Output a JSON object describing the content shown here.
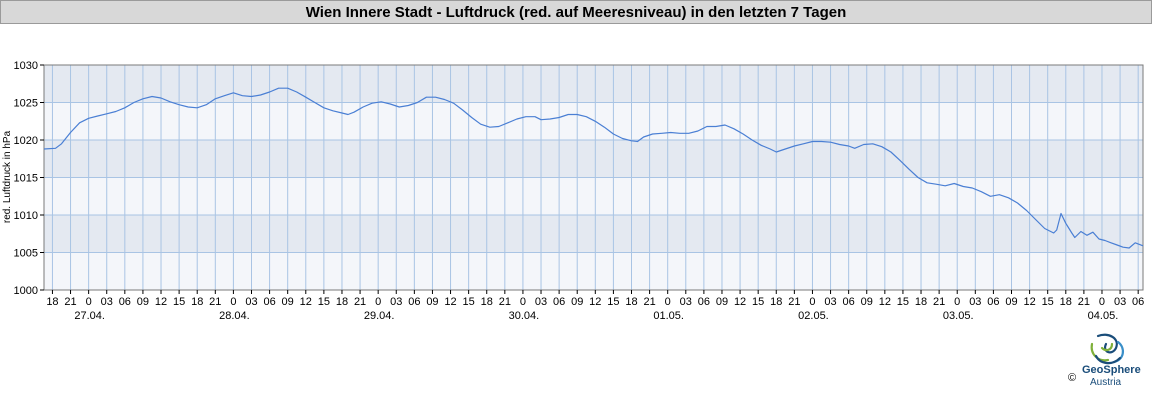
{
  "chart_data": {
    "type": "line",
    "title": "Wien Innere Stadt - Luftdruck (red. auf Meeresniveau) in den letzten 7 Tagen",
    "ylabel": "red. Luftdruck in hPa",
    "xlabel": "",
    "ylim": [
      1000,
      1030
    ],
    "yticks": [
      1000,
      1005,
      1010,
      1015,
      1020,
      1025,
      1030
    ],
    "grid": true,
    "x_unit": "hours since 27.04. 00:00",
    "xlim": [
      -7.4,
      174.8
    ],
    "x_hour_ticks": [
      {
        "t": -6,
        "label": "18"
      },
      {
        "t": -3,
        "label": "21"
      },
      {
        "t": 0,
        "label": "0"
      },
      {
        "t": 3,
        "label": "03"
      },
      {
        "t": 6,
        "label": "06"
      },
      {
        "t": 9,
        "label": "09"
      },
      {
        "t": 12,
        "label": "12"
      },
      {
        "t": 15,
        "label": "15"
      },
      {
        "t": 18,
        "label": "18"
      },
      {
        "t": 21,
        "label": "21"
      },
      {
        "t": 24,
        "label": "0"
      },
      {
        "t": 27,
        "label": "03"
      },
      {
        "t": 30,
        "label": "06"
      },
      {
        "t": 33,
        "label": "09"
      },
      {
        "t": 36,
        "label": "12"
      },
      {
        "t": 39,
        "label": "15"
      },
      {
        "t": 42,
        "label": "18"
      },
      {
        "t": 45,
        "label": "21"
      },
      {
        "t": 48,
        "label": "0"
      },
      {
        "t": 51,
        "label": "03"
      },
      {
        "t": 54,
        "label": "06"
      },
      {
        "t": 57,
        "label": "09"
      },
      {
        "t": 60,
        "label": "12"
      },
      {
        "t": 63,
        "label": "15"
      },
      {
        "t": 66,
        "label": "18"
      },
      {
        "t": 69,
        "label": "21"
      },
      {
        "t": 72,
        "label": "0"
      },
      {
        "t": 75,
        "label": "03"
      },
      {
        "t": 78,
        "label": "06"
      },
      {
        "t": 81,
        "label": "09"
      },
      {
        "t": 84,
        "label": "12"
      },
      {
        "t": 87,
        "label": "15"
      },
      {
        "t": 90,
        "label": "18"
      },
      {
        "t": 93,
        "label": "21"
      },
      {
        "t": 96,
        "label": "0"
      },
      {
        "t": 99,
        "label": "03"
      },
      {
        "t": 102,
        "label": "06"
      },
      {
        "t": 105,
        "label": "09"
      },
      {
        "t": 108,
        "label": "12"
      },
      {
        "t": 111,
        "label": "15"
      },
      {
        "t": 114,
        "label": "18"
      },
      {
        "t": 117,
        "label": "21"
      },
      {
        "t": 120,
        "label": "0"
      },
      {
        "t": 123,
        "label": "03"
      },
      {
        "t": 126,
        "label": "06"
      },
      {
        "t": 129,
        "label": "09"
      },
      {
        "t": 132,
        "label": "12"
      },
      {
        "t": 135,
        "label": "15"
      },
      {
        "t": 138,
        "label": "18"
      },
      {
        "t": 141,
        "label": "21"
      },
      {
        "t": 144,
        "label": "0"
      },
      {
        "t": 147,
        "label": "03"
      },
      {
        "t": 150,
        "label": "06"
      },
      {
        "t": 153,
        "label": "09"
      },
      {
        "t": 156,
        "label": "12"
      },
      {
        "t": 159,
        "label": "15"
      },
      {
        "t": 162,
        "label": "18"
      },
      {
        "t": 165,
        "label": "21"
      },
      {
        "t": 168,
        "label": "0"
      },
      {
        "t": 171,
        "label": "03"
      },
      {
        "t": 174,
        "label": "06"
      }
    ],
    "date_labels": [
      {
        "t": 0,
        "label": "27.04."
      },
      {
        "t": 24,
        "label": "28.04."
      },
      {
        "t": 48,
        "label": "29.04."
      },
      {
        "t": 72,
        "label": "30.04."
      },
      {
        "t": 96,
        "label": "01.05."
      },
      {
        "t": 120,
        "label": "02.05."
      },
      {
        "t": 144,
        "label": "03.05."
      },
      {
        "t": 168,
        "label": "04.05."
      }
    ],
    "series": [
      {
        "color": "#4a7fd4",
        "points": [
          [
            -7.4,
            1018.8
          ],
          [
            -5.5,
            1018.9
          ],
          [
            -4.5,
            1019.5
          ],
          [
            -3,
            1021.0
          ],
          [
            -1.5,
            1022.3
          ],
          [
            0,
            1022.9
          ],
          [
            1.5,
            1023.2
          ],
          [
            3,
            1023.5
          ],
          [
            4.5,
            1023.8
          ],
          [
            6,
            1024.3
          ],
          [
            7.5,
            1025.0
          ],
          [
            9,
            1025.5
          ],
          [
            10.5,
            1025.8
          ],
          [
            12,
            1025.6
          ],
          [
            13.5,
            1025.1
          ],
          [
            15,
            1024.7
          ],
          [
            16.5,
            1024.4
          ],
          [
            18,
            1024.3
          ],
          [
            19.5,
            1024.7
          ],
          [
            21,
            1025.5
          ],
          [
            22.5,
            1025.9
          ],
          [
            24,
            1026.3
          ],
          [
            25.5,
            1025.9
          ],
          [
            27,
            1025.8
          ],
          [
            28.5,
            1026.0
          ],
          [
            30,
            1026.4
          ],
          [
            31.5,
            1026.9
          ],
          [
            33,
            1026.9
          ],
          [
            34.5,
            1026.4
          ],
          [
            36,
            1025.7
          ],
          [
            37.5,
            1025.0
          ],
          [
            39,
            1024.3
          ],
          [
            40.5,
            1023.9
          ],
          [
            42,
            1023.6
          ],
          [
            43,
            1023.4
          ],
          [
            44,
            1023.7
          ],
          [
            45.5,
            1024.4
          ],
          [
            47,
            1024.9
          ],
          [
            48.5,
            1025.1
          ],
          [
            50,
            1024.8
          ],
          [
            51.5,
            1024.4
          ],
          [
            53,
            1024.6
          ],
          [
            54.5,
            1025.0
          ],
          [
            56,
            1025.7
          ],
          [
            57.5,
            1025.7
          ],
          [
            59,
            1025.4
          ],
          [
            60.5,
            1024.9
          ],
          [
            62,
            1024.0
          ],
          [
            63.5,
            1023.0
          ],
          [
            65,
            1022.1
          ],
          [
            66.5,
            1021.7
          ],
          [
            68,
            1021.8
          ],
          [
            69.5,
            1022.3
          ],
          [
            71,
            1022.8
          ],
          [
            72.5,
            1023.1
          ],
          [
            74,
            1023.1
          ],
          [
            75,
            1022.7
          ],
          [
            76.5,
            1022.8
          ],
          [
            78,
            1023.0
          ],
          [
            79.5,
            1023.4
          ],
          [
            81,
            1023.4
          ],
          [
            82.5,
            1023.1
          ],
          [
            84,
            1022.5
          ],
          [
            85.5,
            1021.7
          ],
          [
            87,
            1020.8
          ],
          [
            88.5,
            1020.2
          ],
          [
            90,
            1019.9
          ],
          [
            91,
            1019.8
          ],
          [
            92,
            1020.4
          ],
          [
            93.5,
            1020.8
          ],
          [
            95,
            1020.9
          ],
          [
            96.5,
            1021.0
          ],
          [
            98,
            1020.9
          ],
          [
            99.5,
            1020.9
          ],
          [
            101,
            1021.2
          ],
          [
            102.5,
            1021.8
          ],
          [
            104,
            1021.8
          ],
          [
            105.5,
            1022.0
          ],
          [
            107,
            1021.5
          ],
          [
            108.5,
            1020.8
          ],
          [
            110,
            1020.0
          ],
          [
            111.5,
            1019.3
          ],
          [
            113,
            1018.8
          ],
          [
            114,
            1018.4
          ],
          [
            115.5,
            1018.8
          ],
          [
            117,
            1019.2
          ],
          [
            118.5,
            1019.5
          ],
          [
            120,
            1019.8
          ],
          [
            121.5,
            1019.8
          ],
          [
            123,
            1019.7
          ],
          [
            124.5,
            1019.4
          ],
          [
            126,
            1019.2
          ],
          [
            127,
            1018.9
          ],
          [
            128.5,
            1019.4
          ],
          [
            130,
            1019.5
          ],
          [
            131.5,
            1019.1
          ],
          [
            133,
            1018.4
          ],
          [
            134.5,
            1017.3
          ],
          [
            136,
            1016.1
          ],
          [
            137.5,
            1015.0
          ],
          [
            139,
            1014.3
          ],
          [
            140.5,
            1014.1
          ],
          [
            142,
            1013.9
          ],
          [
            143.5,
            1014.2
          ],
          [
            145,
            1013.8
          ],
          [
            146.5,
            1013.6
          ],
          [
            148,
            1013.1
          ],
          [
            149.5,
            1012.5
          ],
          [
            151,
            1012.7
          ],
          [
            152.5,
            1012.3
          ],
          [
            154,
            1011.6
          ],
          [
            155.5,
            1010.6
          ],
          [
            157,
            1009.4
          ],
          [
            158.5,
            1008.2
          ],
          [
            160,
            1007.6
          ],
          [
            160.5,
            1008.0
          ],
          [
            161.2,
            1010.2
          ],
          [
            162,
            1008.9
          ],
          [
            163,
            1007.6
          ],
          [
            163.5,
            1007.0
          ],
          [
            164.5,
            1007.8
          ],
          [
            165.5,
            1007.3
          ],
          [
            166.5,
            1007.7
          ],
          [
            167.5,
            1006.8
          ],
          [
            168.5,
            1006.6
          ],
          [
            169.5,
            1006.3
          ],
          [
            170.5,
            1006.0
          ],
          [
            171.5,
            1005.7
          ],
          [
            172.5,
            1005.6
          ],
          [
            173.5,
            1006.3
          ],
          [
            174.8,
            1005.9
          ]
        ]
      }
    ]
  },
  "logo": {
    "name": "GeoSphere",
    "sub": "Austria",
    "copyright": "©"
  }
}
